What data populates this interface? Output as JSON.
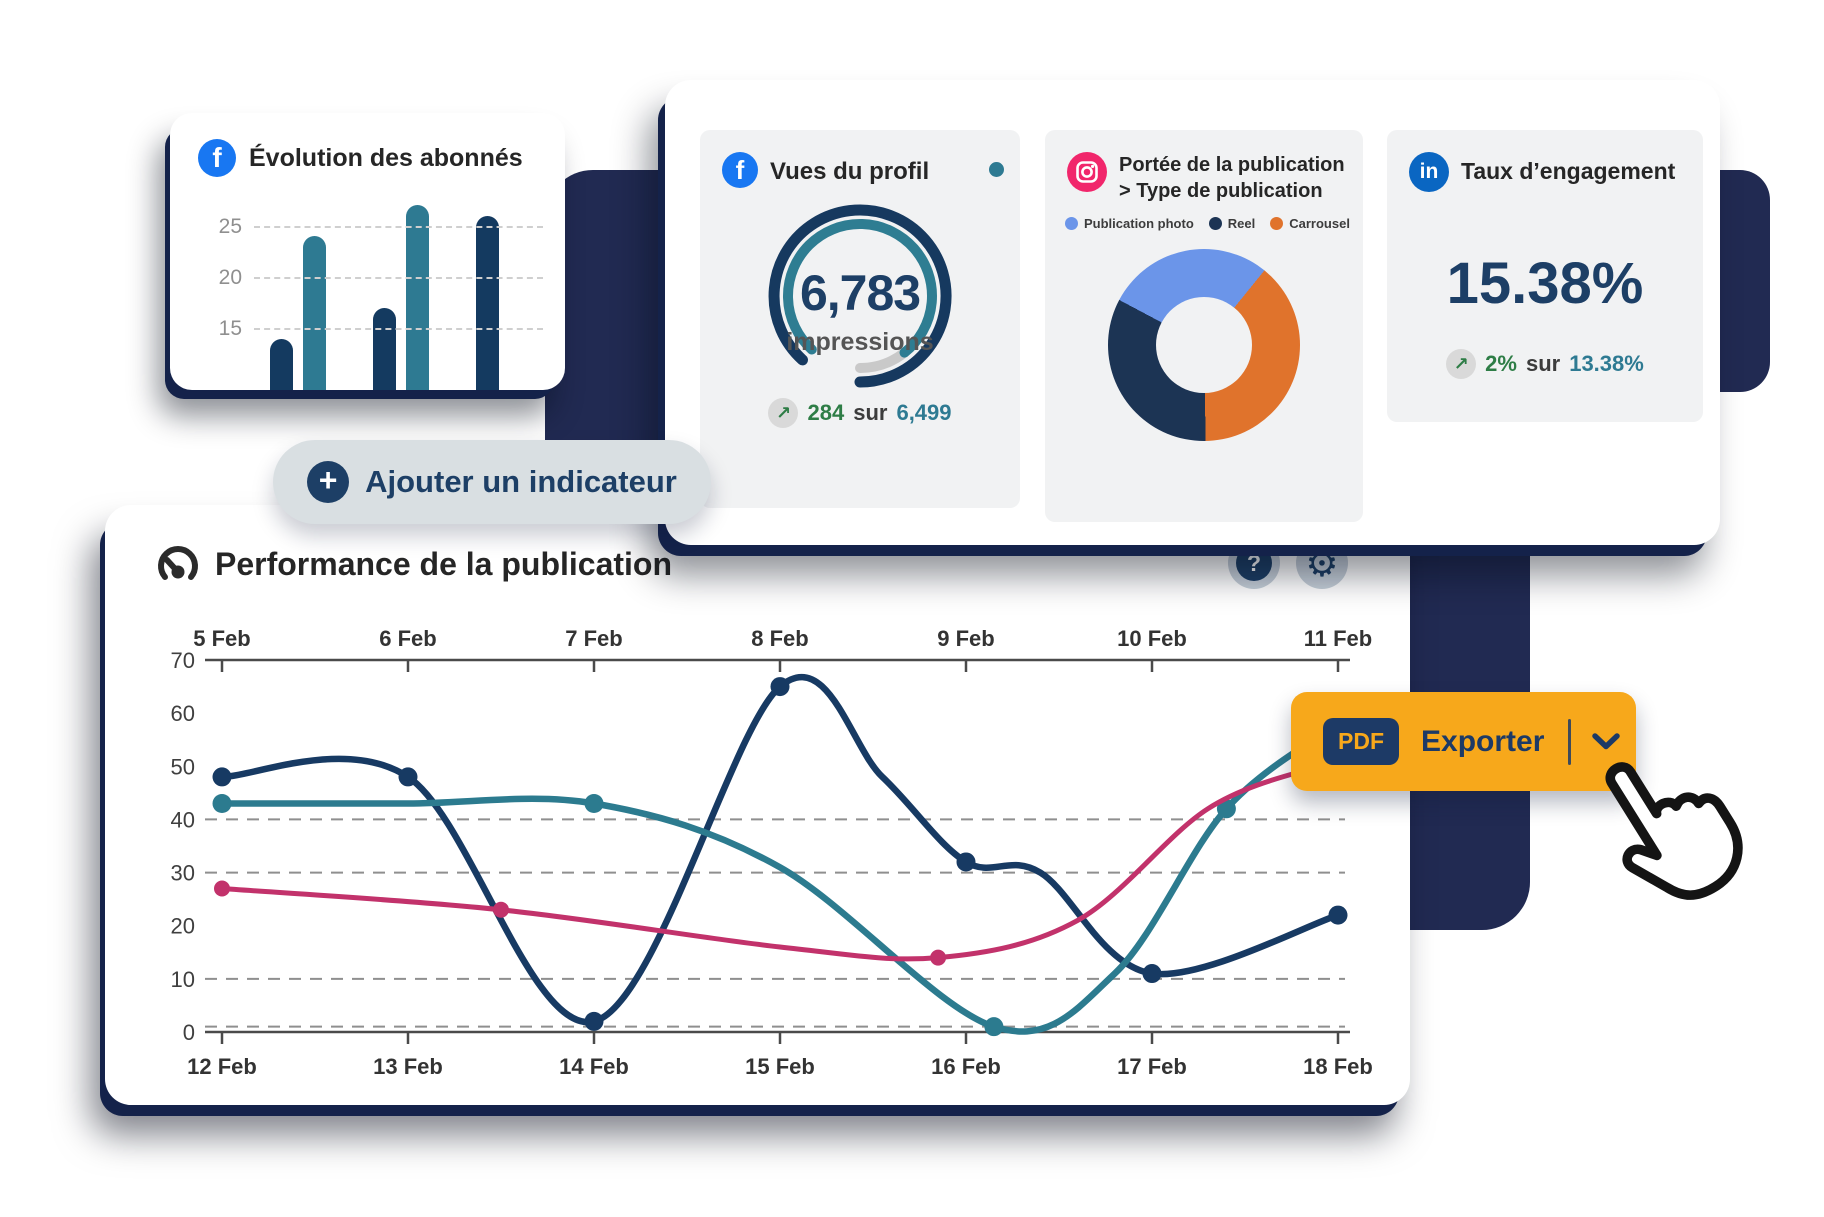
{
  "cards": {
    "followers": {
      "title": "Évolution des abonnés"
    },
    "profile_views": {
      "title": "Vues du profil",
      "value": "6,783",
      "unit": "impressions",
      "delta": "284",
      "join": "sur",
      "total": "6,499"
    },
    "reach": {
      "title_line1": "Portée de la publication",
      "title_line2": "> Type de publication",
      "legend": [
        {
          "label": "Publication photo",
          "color": "#6b95e9"
        },
        {
          "label": "Reel",
          "color": "#1c3454"
        },
        {
          "label": "Carrousel",
          "color": "#e0732c"
        }
      ]
    },
    "engagement": {
      "title": "Taux d’engagement",
      "value": "15.38%",
      "delta": "2%",
      "join": "sur",
      "total": "13.38%"
    }
  },
  "add_indicator": {
    "label": "Ajouter un indicateur"
  },
  "performance": {
    "title": "Performance de la publication"
  },
  "export": {
    "badge": "PDF",
    "label": "Exporter"
  },
  "icons": {
    "facebook": "f",
    "linkedin": "in",
    "plus": "+",
    "help": "?",
    "gear": "⚙",
    "trend_up": "↗"
  },
  "colors": {
    "navy_shape": "#212a52",
    "navy": "#1d3f66",
    "teal": "#2e7a92",
    "pink": "#c2326b",
    "light_blue": "#6b95e9",
    "orange": "#e0732c",
    "button_orange": "#f7a81b",
    "green": "#2e7d46",
    "panel_gray": "#f1f2f3",
    "pill_gray": "#d9dfe2",
    "facebook_blue": "#1877f2",
    "linkedin_blue": "#0a66c2",
    "instagram_pink": "#f1266b"
  },
  "chart_data": [
    {
      "type": "bar",
      "title": "Évolution des abonnés",
      "values": [
        14,
        24,
        17,
        27,
        26
      ],
      "bar_colors": [
        "navy",
        "teal",
        "navy",
        "teal",
        "navy"
      ],
      "yticks": [
        25,
        20,
        15
      ],
      "ylim": [
        9,
        28
      ],
      "grid": "dashed"
    },
    {
      "type": "gauge",
      "title": "Vues du profil",
      "value": "6,783",
      "label": "impressions",
      "progress": 0.88,
      "note": "284 sur 6,499"
    },
    {
      "type": "pie",
      "title": "Portée de la publication > Type de publication",
      "start_deg": -62,
      "donut_hole_ratio": 0.5,
      "slices": [
        {
          "label": "Publication photo",
          "value_deg": 101,
          "color": "#6b95e9"
        },
        {
          "label": "Carrousel",
          "value_deg": 140,
          "color": "#e0732c"
        },
        {
          "label": "Reel",
          "value_deg": 119,
          "color": "#1c3454"
        }
      ]
    },
    {
      "type": "line",
      "title": "Performance de la publication",
      "x_top": [
        "5 Feb",
        "6 Feb",
        "7 Feb",
        "8 Feb",
        "9 Feb",
        "10 Feb",
        "11 Feb"
      ],
      "x_bottom": [
        "12 Feb",
        "13 Feb",
        "14 Feb",
        "15 Feb",
        "16 Feb",
        "17 Feb",
        "18 Feb"
      ],
      "ylim": [
        0,
        70
      ],
      "yticks": [
        0,
        10,
        20,
        30,
        40,
        50,
        60,
        70
      ],
      "gridlines": [
        40,
        30,
        10,
        1
      ],
      "legend_position": "none",
      "grid": "dashed-horizontal",
      "series": [
        {
          "name": "navy",
          "color": "#173a63",
          "width": 6.5,
          "dot": 9.5,
          "points": [
            [
              0,
              48
            ],
            [
              1,
              48
            ],
            [
              2,
              2
            ],
            [
              3,
              65
            ],
            [
              3.55,
              48
            ],
            [
              4,
              32
            ],
            [
              4.4,
              30
            ],
            [
              5,
              11
            ],
            [
              6,
              22
            ]
          ],
          "markers": [
            [
              0,
              48
            ],
            [
              1,
              48
            ],
            [
              2,
              2
            ],
            [
              3,
              65
            ],
            [
              4,
              32
            ],
            [
              5,
              11
            ],
            [
              6,
              22
            ]
          ]
        },
        {
          "name": "teal",
          "color": "#2c7b8f",
          "width": 6.5,
          "dot": 9.5,
          "points": [
            [
              0,
              43
            ],
            [
              1,
              43
            ],
            [
              2,
              43
            ],
            [
              3,
              31
            ],
            [
              4.15,
              1
            ],
            [
              4.8,
              11
            ],
            [
              5.4,
              42
            ],
            [
              6,
              58
            ]
          ],
          "markers": [
            [
              0,
              43
            ],
            [
              2,
              43
            ],
            [
              4.15,
              1
            ],
            [
              5.4,
              42
            ]
          ]
        },
        {
          "name": "pink",
          "color": "#c2326b",
          "width": 5,
          "dot": 8,
          "points": [
            [
              0,
              27
            ],
            [
              1.5,
              23
            ],
            [
              3,
              16
            ],
            [
              3.85,
              14
            ],
            [
              4.6,
              21
            ],
            [
              5.3,
              42
            ],
            [
              5.9,
              50
            ],
            [
              6,
              50
            ]
          ],
          "markers": [
            [
              0,
              27
            ],
            [
              1.5,
              23
            ],
            [
              3.85,
              14
            ]
          ]
        }
      ]
    }
  ]
}
